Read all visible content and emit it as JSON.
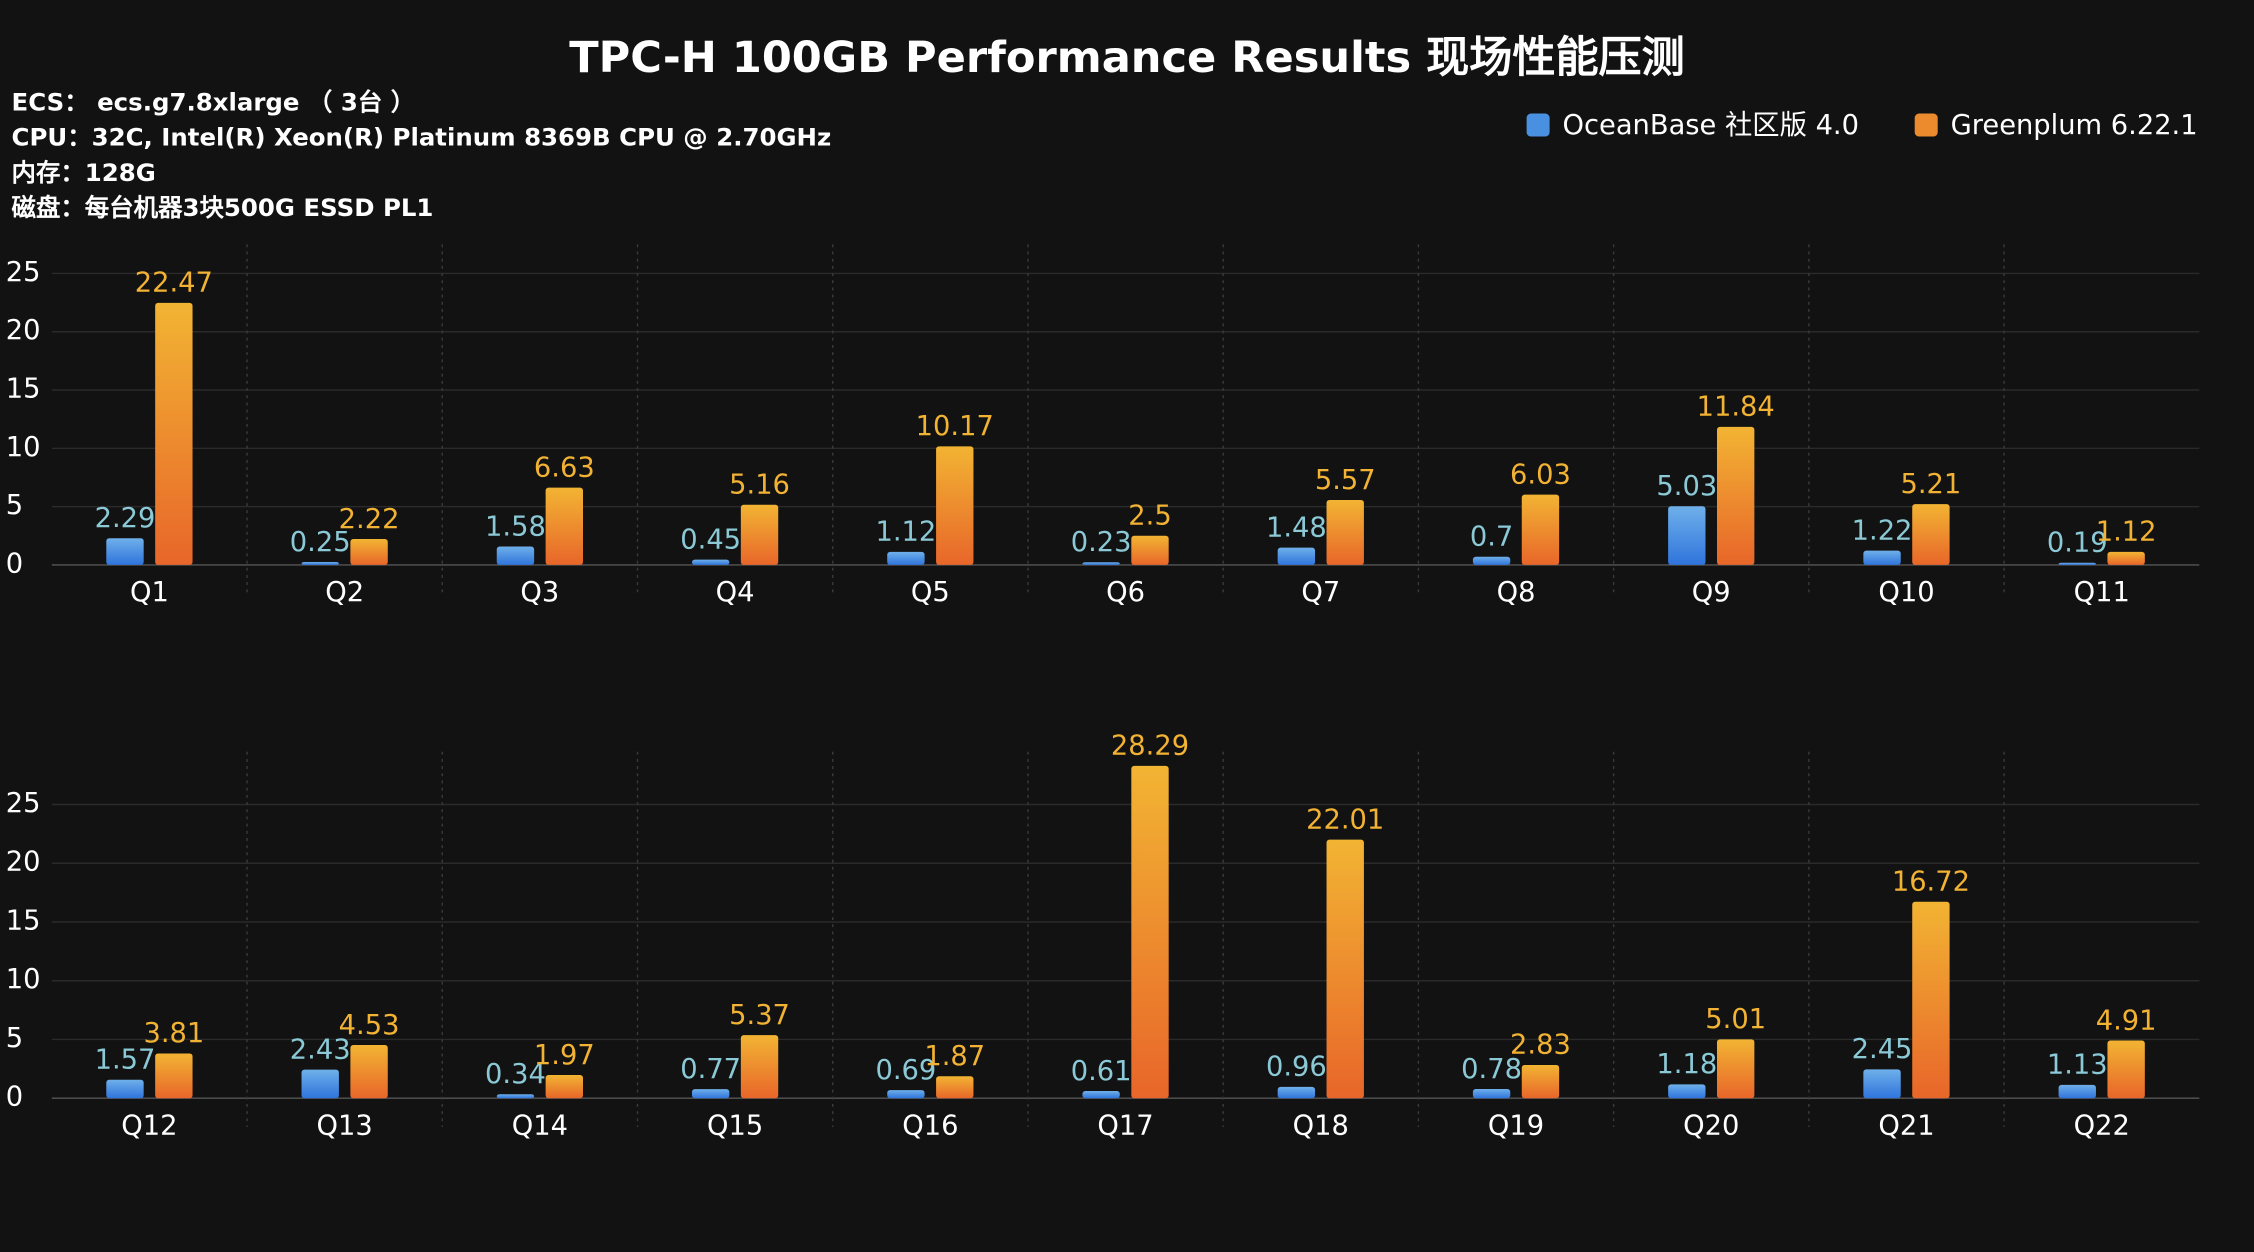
{
  "title": "TPC-H 100GB Performance Results 现场性能压测",
  "notes": [
    "ECS：  ecs.g7.8xlarge （ 3台 ）",
    "CPU：32C, Intel(R) Xeon(R) Platinum 8369B CPU @ 2.70GHz",
    "内存：128G",
    "磁盘：每台机器3块500G ESSD PL1"
  ],
  "chart_data": [
    {
      "type": "bar",
      "categories": [
        "Q1",
        "Q2",
        "Q3",
        "Q4",
        "Q5",
        "Q6",
        "Q7",
        "Q8",
        "Q9",
        "Q10",
        "Q11"
      ],
      "series": [
        {
          "name": "OceanBase 社区版 4.0",
          "color": "#4a90e0",
          "values": [
            2.29,
            0.25,
            1.58,
            0.45,
            1.12,
            0.23,
            1.48,
            0.7,
            5.03,
            1.22,
            0.19
          ]
        },
        {
          "name": "Greenplum 6.22.1",
          "color": "#ec8a2e",
          "values": [
            22.47,
            2.22,
            6.63,
            5.16,
            10.17,
            2.5,
            5.57,
            6.03,
            11.84,
            5.21,
            1.12
          ]
        }
      ],
      "ylim": [
        0,
        27
      ],
      "yticks": [
        0,
        5,
        10,
        15,
        20,
        25
      ],
      "grid": true,
      "legend": "top-right"
    },
    {
      "type": "bar",
      "categories": [
        "Q12",
        "Q13",
        "Q14",
        "Q15",
        "Q16",
        "Q17",
        "Q18",
        "Q19",
        "Q20",
        "Q21",
        "Q22"
      ],
      "series": [
        {
          "color": "#4a90e0",
          "values": [
            1.57,
            2.43,
            0.34,
            0.77,
            0.69,
            0.61,
            0.96,
            0.78,
            1.18,
            2.45,
            1.13
          ]
        },
        {
          "color": "#ec8a2e",
          "values": [
            3.81,
            4.53,
            1.97,
            5.37,
            1.87,
            28.29,
            22.01,
            2.83,
            5.01,
            16.72,
            4.91
          ]
        }
      ],
      "ylim": [
        0,
        29
      ],
      "yticks": [
        0,
        5,
        10,
        15,
        20,
        25
      ],
      "grid": true
    }
  ]
}
